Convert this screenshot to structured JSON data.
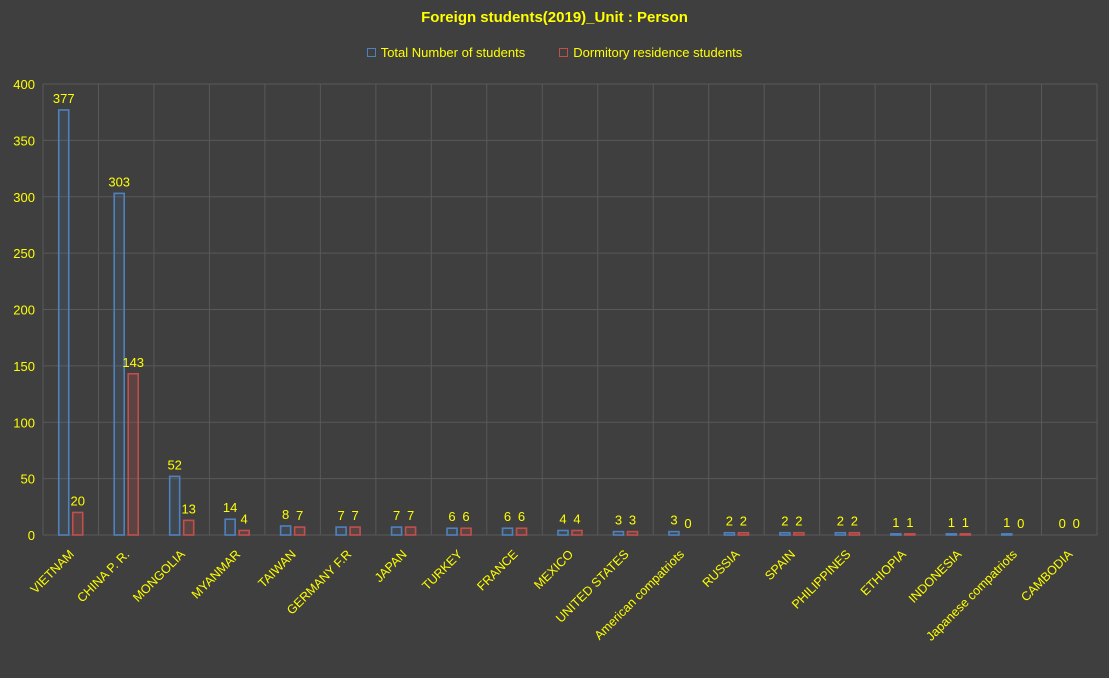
{
  "chart_data": {
    "type": "bar",
    "title": "Foreign students(2019)_Unit : Person",
    "xlabel": "",
    "ylabel": "",
    "ylim": [
      0,
      400
    ],
    "yticks": [
      0,
      50,
      100,
      150,
      200,
      250,
      300,
      350,
      400
    ],
    "grid": true,
    "legend_position": "top",
    "categories": [
      "VIETNAM",
      "CHINA P. R.",
      "MONGOLIA",
      "MYANMAR",
      "TAIWAN",
      "GERMANY F.R",
      "JAPAN",
      "TURKEY",
      "FRANCE",
      "MEXICO",
      "UNITED STATES",
      "American compatriots",
      "RUSSIA",
      "SPAIN",
      "PHILIPPINES",
      "ETHIOPIA",
      "INDONESIA",
      "Japanese compatriots",
      "CAMBODIA"
    ],
    "series": [
      {
        "name": "Total Number of students",
        "color": "#4f81bd",
        "values": [
          377,
          303,
          52,
          14,
          8,
          7,
          7,
          6,
          6,
          4,
          3,
          3,
          2,
          2,
          2,
          1,
          1,
          1,
          0
        ]
      },
      {
        "name": "Dormitory residence students",
        "color": "#c0504d",
        "values": [
          20,
          143,
          13,
          4,
          7,
          7,
          7,
          6,
          6,
          4,
          3,
          0,
          2,
          2,
          2,
          1,
          1,
          0,
          0
        ]
      }
    ],
    "colors": {
      "background": "#3f3f3f",
      "text": "#ffff00",
      "grid": "#595959"
    }
  }
}
